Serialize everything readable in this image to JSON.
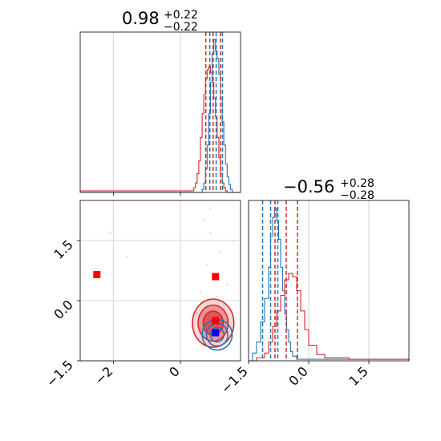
{
  "chart_data": [
    {
      "panel": "histogram-param-1",
      "type": "line",
      "title_value": "0.98",
      "title_upper": "+0.22",
      "title_lower": "−0.22",
      "xlim": [
        -3.0,
        1.8
      ],
      "grid": true,
      "x_ticks": [
        -2,
        0
      ],
      "series": [
        {
          "color": "#d62728",
          "x": [
            -3.0,
            0.3,
            0.4,
            0.45,
            0.5,
            0.55,
            0.6,
            0.65,
            0.7,
            0.75,
            0.8,
            0.85,
            0.9,
            0.95,
            1.0,
            1.05,
            1.1,
            1.15,
            1.2,
            1.25,
            1.3,
            1.35,
            1.4,
            1.8
          ],
          "values": [
            0.01,
            0.01,
            0.03,
            0.06,
            0.12,
            0.2,
            0.35,
            0.5,
            0.62,
            0.72,
            0.78,
            0.8,
            0.76,
            0.7,
            0.6,
            0.48,
            0.35,
            0.22,
            0.12,
            0.06,
            0.03,
            0.01,
            0.0,
            0.0
          ]
        },
        {
          "color": "#1f77b4",
          "x": [
            -3.0,
            0.6,
            0.65,
            0.7,
            0.75,
            0.8,
            0.85,
            0.9,
            0.95,
            1.0,
            1.05,
            1.1,
            1.15,
            1.2,
            1.25,
            1.3,
            1.35,
            1.4,
            1.45,
            1.5,
            1.55,
            1.8
          ],
          "values": [
            0.0,
            0.0,
            0.02,
            0.06,
            0.15,
            0.3,
            0.5,
            0.7,
            0.88,
            0.97,
            0.9,
            0.85,
            0.75,
            0.6,
            0.45,
            0.3,
            0.18,
            0.1,
            0.05,
            0.02,
            0.0,
            0.0
          ]
        }
      ],
      "quantile_lines": [
        {
          "color": "#d62728",
          "x": [
            0.76,
            0.98,
            1.2
          ]
        },
        {
          "color": "#1f77b4",
          "x": [
            0.88,
            1.07,
            1.26
          ]
        }
      ]
    },
    {
      "panel": "scatter-2d",
      "type": "scatter",
      "xlim": [
        -3.0,
        1.8
      ],
      "ylim": [
        -1.5,
        2.5
      ],
      "grid": true,
      "x_ticks": [
        -2,
        0
      ],
      "y_ticks": [
        -1.5,
        0.0,
        1.5
      ],
      "x_tick_labels": [
        "−2",
        "0"
      ],
      "y_tick_labels": [
        "−1.5",
        "0.0",
        "1.5"
      ],
      "markers": [
        {
          "color": "#ff0000",
          "shape": "square",
          "x": -2.5,
          "y": 0.65
        },
        {
          "color": "#ff0000",
          "shape": "square",
          "x": 1.05,
          "y": 0.6
        },
        {
          "color": "#ff0000",
          "shape": "square",
          "x": 1.05,
          "y": -0.5
        },
        {
          "color": "#0000ff",
          "shape": "square",
          "x": 1.05,
          "y": -0.8
        }
      ],
      "contour_sets": [
        {
          "color": "#d62728",
          "center": [
            0.98,
            -0.56
          ],
          "radii": [
            [
              0.62,
              0.6
            ],
            [
              0.45,
              0.45
            ],
            [
              0.3,
              0.3
            ]
          ]
        },
        {
          "color": "#1f77b4",
          "center": [
            1.1,
            -0.85
          ],
          "radii": [
            [
              0.45,
              0.38
            ],
            [
              0.32,
              0.28
            ],
            [
              0.2,
              0.18
            ]
          ]
        }
      ]
    },
    {
      "panel": "histogram-param-2",
      "type": "line",
      "title_value": "−0.56",
      "title_upper": "+0.28",
      "title_lower": "−0.28",
      "xlim": [
        -1.5,
        2.5
      ],
      "grid": true,
      "x_ticks": [
        -1.5,
        0.0,
        1.5
      ],
      "x_tick_labels": [
        "−1.5",
        "0.0",
        "1.5"
      ],
      "series": [
        {
          "color": "#1f77b4",
          "x": [
            -1.5,
            -1.4,
            -1.3,
            -1.2,
            -1.1,
            -1.0,
            -0.95,
            -0.9,
            -0.85,
            -0.8,
            -0.75,
            -0.7,
            -0.65,
            -0.6,
            -0.55,
            -0.5,
            -0.45,
            -0.4,
            -0.3,
            2.5
          ],
          "values": [
            0.0,
            0.05,
            0.12,
            0.25,
            0.4,
            0.6,
            0.8,
            0.92,
            0.98,
            0.9,
            0.78,
            0.6,
            0.45,
            0.3,
            0.2,
            0.12,
            0.06,
            0.03,
            0.01,
            0.0
          ]
        },
        {
          "color": "#d62728",
          "x": [
            -1.5,
            -1.3,
            -1.1,
            -1.0,
            -0.9,
            -0.8,
            -0.7,
            -0.6,
            -0.5,
            -0.4,
            -0.3,
            -0.2,
            -0.1,
            0.0,
            0.2,
            0.4,
            1.0,
            1.5,
            2.0,
            2.5
          ],
          "values": [
            0.0,
            0.02,
            0.05,
            0.12,
            0.22,
            0.32,
            0.42,
            0.52,
            0.56,
            0.54,
            0.45,
            0.32,
            0.2,
            0.1,
            0.04,
            0.02,
            0.01,
            0.01,
            0.01,
            0.0
          ]
        }
      ],
      "quantile_lines": [
        {
          "color": "#1f77b4",
          "x": [
            -1.15,
            -0.95,
            -0.77
          ]
        },
        {
          "color": "#d62728",
          "x": [
            -0.84,
            -0.56,
            -0.28
          ]
        }
      ]
    }
  ]
}
